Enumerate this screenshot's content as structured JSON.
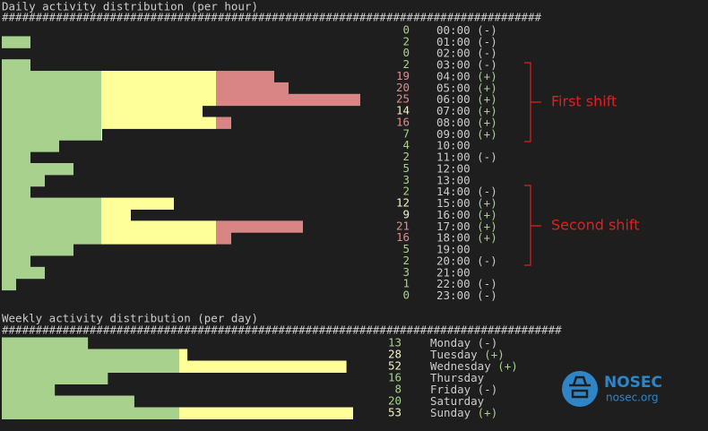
{
  "chart_data": [
    {
      "type": "bar",
      "title": "Daily activity distribution (per hour)",
      "separator": "################################################################################",
      "categories": [
        "00:00",
        "01:00",
        "02:00",
        "03:00",
        "04:00",
        "05:00",
        "06:00",
        "07:00",
        "08:00",
        "09:00",
        "10:00",
        "11:00",
        "12:00",
        "13:00",
        "14:00",
        "15:00",
        "16:00",
        "17:00",
        "18:00",
        "19:00",
        "20:00",
        "21:00",
        "22:00",
        "23:00"
      ],
      "values": [
        0,
        2,
        0,
        2,
        19,
        20,
        25,
        14,
        16,
        7,
        4,
        2,
        5,
        3,
        2,
        12,
        9,
        21,
        16,
        5,
        2,
        3,
        1,
        0
      ],
      "markers": [
        "(-)",
        "(-)",
        "(-)",
        "(-)",
        "(+)",
        "(+)",
        "(+)",
        "(+)",
        "(+)",
        "(+)",
        null,
        "(-)",
        null,
        null,
        "(-)",
        "(+)",
        "(+)",
        "(+)",
        "(+)",
        null,
        "(-)",
        null,
        "(-)",
        "(-)"
      ],
      "label_colors": [
        "#a9d18e",
        "#a9d18e",
        "#a9d18e",
        "#a9d18e",
        "#e08c8c",
        "#e08c8c",
        "#e08c8c",
        "#f2f2c8",
        "#e08c8c",
        "#a9d18e",
        "#a9d18e",
        "#a9d18e",
        "#a9d18e",
        "#a9d18e",
        "#a9d18e",
        "#f2f2c8",
        "#f2f2c8",
        "#e08c8c",
        "#e08c8c",
        "#a9d18e",
        "#a9d18e",
        "#a9d18e",
        "#a9d18e",
        "#a9d18e"
      ]
    },
    {
      "type": "bar",
      "title": "Weekly activity distribution (per day)",
      "separator": "###################################################################################",
      "categories": [
        "Monday",
        "Tuesday",
        "Wednesday",
        "Thursday",
        "Friday",
        "Saturday",
        "Sunday"
      ],
      "values": [
        13,
        28,
        52,
        16,
        8,
        20,
        53
      ],
      "markers": [
        "(-)",
        "(+)",
        "(+)",
        null,
        "(-)",
        null,
        "(+)"
      ],
      "label_colors": [
        "#a9d18e",
        "#f2f2c8",
        "#f2f2c8",
        "#a9d18e",
        "#a9d18e",
        "#a9d18e",
        "#f2f2c8"
      ]
    }
  ],
  "annotations": {
    "first_shift": "First shift",
    "second_shift": "Second shift"
  },
  "logo": {
    "name": "NOSEC",
    "site": "nosec.org"
  }
}
